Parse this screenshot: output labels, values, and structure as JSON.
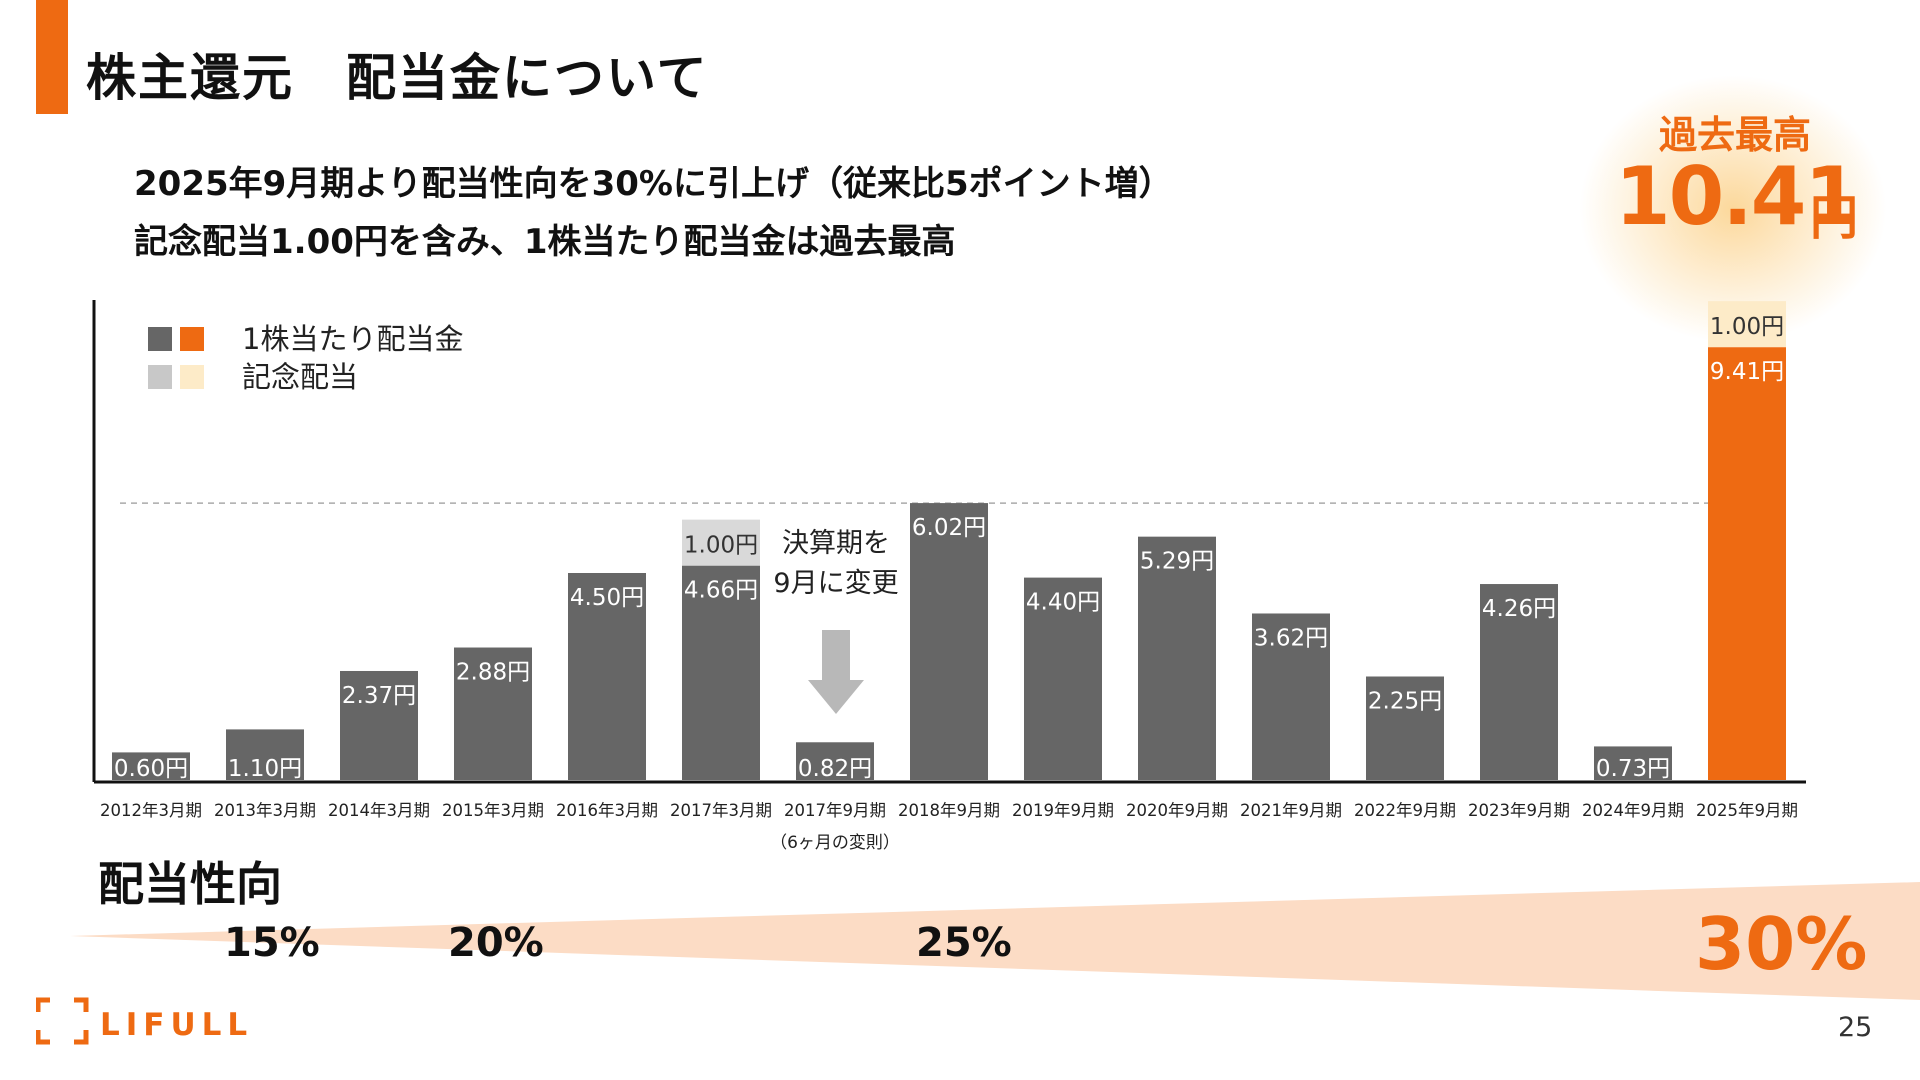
{
  "header": {
    "title": "株主還元　配当金について",
    "subtitle_line1": "2025年9月期より配当性向を30%に引上げ（従来比5ポイント増）",
    "subtitle_line2": "記念配当1.00円を含み、1株当たり配当金は過去最高"
  },
  "record": {
    "label": "過去最高",
    "value": "10.41",
    "unit": "円"
  },
  "chart_data": {
    "type": "bar",
    "stacked": true,
    "categories": [
      "2012年3月期",
      "2013年3月期",
      "2014年3月期",
      "2015年3月期",
      "2016年3月期",
      "2017年3月期",
      "2017年9月期",
      "2018年9月期",
      "2019年9月期",
      "2020年9月期",
      "2021年9月期",
      "2022年9月期",
      "2023年9月期",
      "2024年9月期",
      "2025年9月期"
    ],
    "category_sublabels": {
      "2017年9月期": "（6ヶ月の変則）"
    },
    "series": [
      {
        "name": "1株当たり配当金",
        "values": [
          0.6,
          1.1,
          2.37,
          2.88,
          4.5,
          4.66,
          0.82,
          6.02,
          4.4,
          5.29,
          3.62,
          2.25,
          4.26,
          0.73,
          9.41
        ],
        "colors": [
          "#666666",
          "#ee6a12"
        ]
      },
      {
        "name": "記念配当",
        "values": [
          0,
          0,
          0,
          0,
          0,
          1.0,
          0,
          0,
          0,
          0,
          0,
          0,
          0,
          0,
          1.0
        ],
        "colors": [
          "#d9d9d9",
          "#fdebc8"
        ]
      }
    ],
    "value_labels": [
      "0.60円",
      "1.10円",
      "2.37円",
      "2.88円",
      "4.50円",
      "4.66円",
      "0.82円",
      "6.02円",
      "4.40円",
      "5.29円",
      "3.62円",
      "2.25円",
      "4.26円",
      "0.73円",
      "9.41円"
    ],
    "commemorative_labels": {
      "5": "1.00円",
      "14": "1.00円"
    },
    "highlight_index": 14,
    "reference_line": 6.02,
    "ylim": [
      0,
      10.5
    ],
    "legend_position": "top-left",
    "annotation": {
      "lines": [
        "決算期を",
        "9月に変更"
      ],
      "at": "2017年9月期"
    }
  },
  "colors": {
    "accent": "#ee6a12",
    "bar": "#666666",
    "commemorative_gray": "#d9d9d9",
    "commemorative_light": "#fdebc8",
    "payout_band": "#fcdcc5"
  },
  "payout": {
    "label": "配当性向",
    "ratios": [
      "15%",
      "20%",
      "25%",
      "30%"
    ]
  },
  "footer": {
    "brand": "LIFULL",
    "page": "25"
  }
}
